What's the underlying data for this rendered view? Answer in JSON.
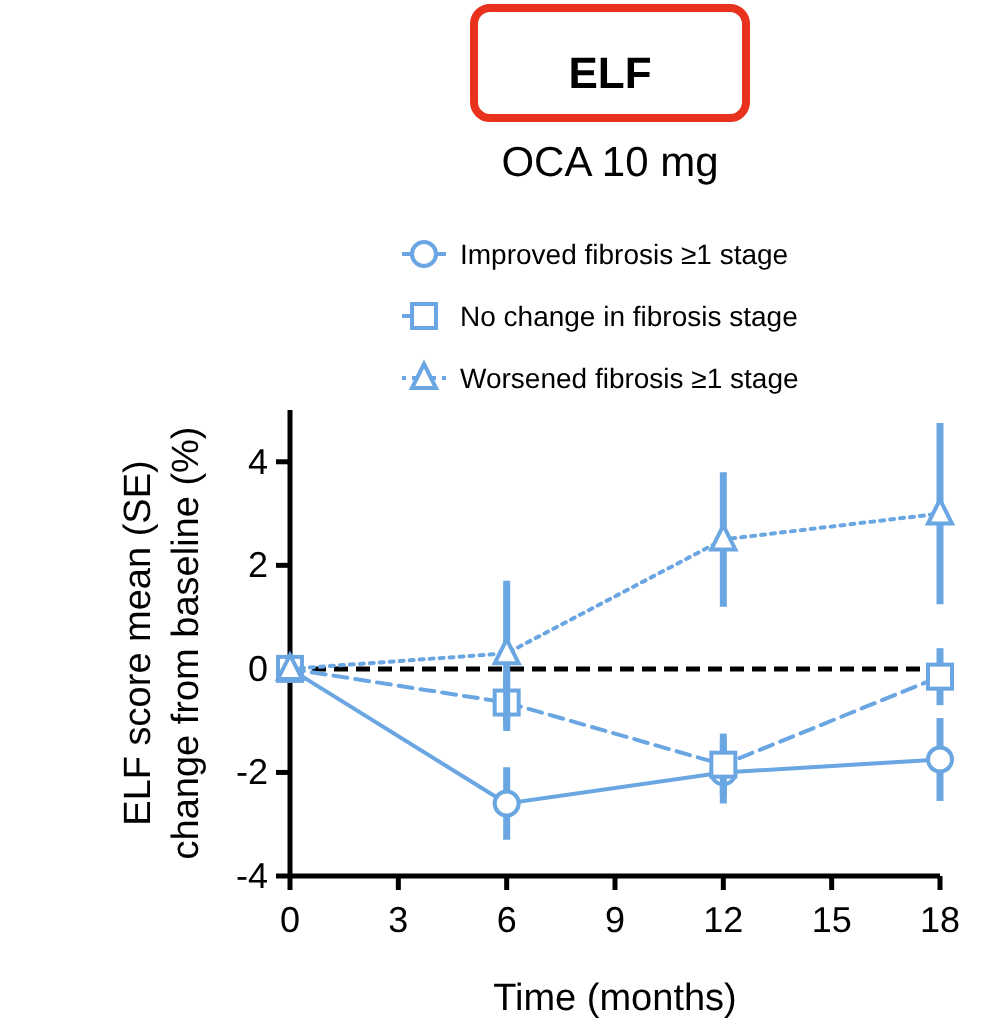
{
  "chart_data": {
    "type": "line",
    "title": "ELF",
    "subtitle": "OCA 10 mg",
    "xlabel": "Time (months)",
    "ylabel": "ELF score mean (SE) change from baseline (%)",
    "xlim": [
      0,
      18
    ],
    "xticks": [
      0,
      3,
      6,
      9,
      12,
      15,
      18
    ],
    "ylim": [
      -4,
      5
    ],
    "yticks": [
      -4,
      -2,
      0,
      2,
      4
    ],
    "grid": false,
    "legend": "top",
    "series": [
      {
        "name": "Improved fibrosis ≥1 stage",
        "color": "#6aa6e2",
        "marker": "circle",
        "line_style": "solid",
        "x": [
          0,
          6,
          12,
          18
        ],
        "values": [
          0,
          -2.6,
          -2.0,
          -1.75
        ],
        "errors": [
          null,
          0.7,
          0.6,
          0.8
        ]
      },
      {
        "name": "No change in fibrosis stage",
        "color": "#6aa6e2",
        "marker": "square",
        "line_style": "dashed",
        "x": [
          0,
          6,
          12,
          18
        ],
        "values": [
          0,
          -0.65,
          -1.85,
          -0.15
        ],
        "errors": [
          null,
          0.55,
          0.6,
          0.55
        ]
      },
      {
        "name": "Worsened fibrosis ≥1 stage",
        "color": "#6aa6e2",
        "marker": "triangle",
        "line_style": "dotted",
        "x": [
          0,
          6,
          12,
          18
        ],
        "values": [
          0,
          0.3,
          2.5,
          3.0
        ],
        "errors": [
          null,
          1.4,
          1.3,
          1.75
        ]
      }
    ],
    "ref_lines": [
      {
        "axis": "y",
        "value": 0,
        "color": "#000000",
        "line_style": "dashed"
      }
    ]
  }
}
